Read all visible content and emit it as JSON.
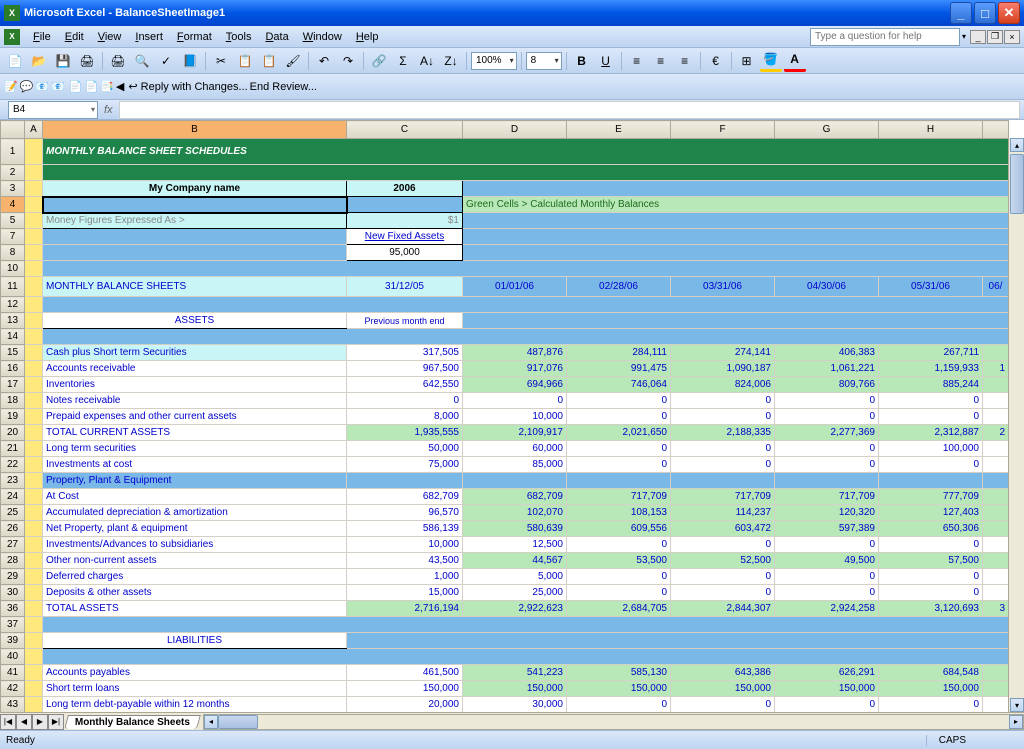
{
  "window": {
    "title": "Microsoft Excel - BalanceSheetImage1"
  },
  "menu": {
    "items": [
      "File",
      "Edit",
      "View",
      "Insert",
      "Format",
      "Tools",
      "Data",
      "Window",
      "Help"
    ],
    "helpPlaceholder": "Type a question for help"
  },
  "toolbar": {
    "zoom": "100%",
    "fontSize": "8",
    "replyText": "Reply with Changes...",
    "endReview": "End Review..."
  },
  "nameBox": "B4",
  "columns": {
    "letters": [
      "A",
      "B",
      "C",
      "D",
      "E",
      "F",
      "G",
      "H"
    ],
    "widths": [
      18,
      304,
      116,
      104,
      104,
      104,
      104,
      104
    ],
    "selected": "B"
  },
  "sheet": {
    "title": "MONTHLY BALANCE SHEET SCHEDULES",
    "companyLabel": "My Company name",
    "year": "2006",
    "calcNote": "Green Cells > Calculated Monthly Balances",
    "moneyLabel": "Money Figures Expressed As >",
    "moneyValue": "$1",
    "newFixedAssets": "New Fixed Assets",
    "newFixedAssetsValue": "95,000",
    "mbsLabel": "MONTHLY BALANCE SHEETS",
    "prevMonthEnd": "Previous month end",
    "dates": [
      "31/12/05",
      "01/01/06",
      "02/28/06",
      "03/31/06",
      "04/30/06",
      "05/31/06",
      "06/"
    ],
    "assetsHdr": "ASSETS",
    "liabilitiesHdr": "LIABILITIES",
    "rows": [
      {
        "num": 15,
        "label": "Cash plus Short term Securities",
        "vals": [
          "317,505",
          "487,876",
          "284,111",
          "274,141",
          "406,383",
          "267,711",
          ""
        ],
        "green": true,
        "cyanLabel": true
      },
      {
        "num": 16,
        "label": "Accounts receivable",
        "vals": [
          "967,500",
          "917,076",
          "991,475",
          "1,090,187",
          "1,061,221",
          "1,159,933",
          "1"
        ],
        "green": true
      },
      {
        "num": 17,
        "label": "Inventories",
        "vals": [
          "642,550",
          "694,966",
          "746,064",
          "824,006",
          "809,766",
          "885,244",
          ""
        ],
        "green": true
      },
      {
        "num": 18,
        "label": "Notes receivable",
        "vals": [
          "0",
          "0",
          "0",
          "0",
          "0",
          "0",
          ""
        ]
      },
      {
        "num": 19,
        "label": "Prepaid expenses and other current assets",
        "vals": [
          "8,000",
          "10,000",
          "0",
          "0",
          "0",
          "0",
          ""
        ]
      },
      {
        "num": 20,
        "label": "           TOTAL CURRENT ASSETS",
        "vals": [
          "1,935,555",
          "2,109,917",
          "2,021,650",
          "2,188,335",
          "2,277,369",
          "2,312,887",
          "2"
        ],
        "green": true,
        "total": true
      },
      {
        "num": 21,
        "label": "Long term securities",
        "vals": [
          "50,000",
          "60,000",
          "0",
          "0",
          "0",
          "100,000",
          ""
        ]
      },
      {
        "num": 22,
        "label": "Investments at cost",
        "vals": [
          "75,000",
          "85,000",
          "0",
          "0",
          "0",
          "0",
          ""
        ]
      },
      {
        "num": 23,
        "label": "Property, Plant & Equipment",
        "vals": [
          "",
          "",
          "",
          "",
          "",
          "",
          ""
        ],
        "blueRow": true
      },
      {
        "num": 24,
        "label": "At Cost",
        "vals": [
          "682,709",
          "682,709",
          "717,709",
          "717,709",
          "717,709",
          "777,709",
          ""
        ],
        "green": true
      },
      {
        "num": 25,
        "label": "Accumulated depreciation & amortization",
        "vals": [
          "96,570",
          "102,070",
          "108,153",
          "114,237",
          "120,320",
          "127,403",
          ""
        ],
        "green": true
      },
      {
        "num": 26,
        "label": "     Net Property, plant & equipment",
        "vals": [
          "586,139",
          "580,639",
          "609,556",
          "603,472",
          "597,389",
          "650,306",
          ""
        ],
        "green": true
      },
      {
        "num": 27,
        "label": "Investments/Advances to subsidiaries",
        "vals": [
          "10,000",
          "12,500",
          "0",
          "0",
          "0",
          "0",
          ""
        ]
      },
      {
        "num": 28,
        "label": "Other non-current assets",
        "vals": [
          "43,500",
          "44,567",
          "53,500",
          "52,500",
          "49,500",
          "57,500",
          ""
        ],
        "green": true
      },
      {
        "num": 29,
        "label": "Deferred charges",
        "vals": [
          "1,000",
          "5,000",
          "0",
          "0",
          "0",
          "0",
          ""
        ]
      },
      {
        "num": 30,
        "label": "Deposits & other assets",
        "vals": [
          "15,000",
          "25,000",
          "0",
          "0",
          "0",
          "0",
          ""
        ]
      },
      {
        "num": 36,
        "label": "                    TOTAL ASSETS",
        "vals": [
          "2,716,194",
          "2,922,623",
          "2,684,705",
          "2,844,307",
          "2,924,258",
          "3,120,693",
          "3"
        ],
        "green": true,
        "total": true
      }
    ],
    "liabRows": [
      {
        "num": 41,
        "label": "Accounts payables",
        "vals": [
          "461,500",
          "541,223",
          "585,130",
          "643,386",
          "626,291",
          "684,548",
          ""
        ],
        "green": true
      },
      {
        "num": 42,
        "label": "Short term loans",
        "vals": [
          "150,000",
          "150,000",
          "150,000",
          "150,000",
          "150,000",
          "150,000",
          ""
        ],
        "green": true
      },
      {
        "num": 43,
        "label": "Long term debt-payable within 12 months",
        "vals": [
          "20,000",
          "30,000",
          "0",
          "0",
          "0",
          "0",
          ""
        ]
      }
    ]
  },
  "tab": "Monthly Balance Sheets",
  "status": {
    "ready": "Ready",
    "caps": "CAPS"
  }
}
